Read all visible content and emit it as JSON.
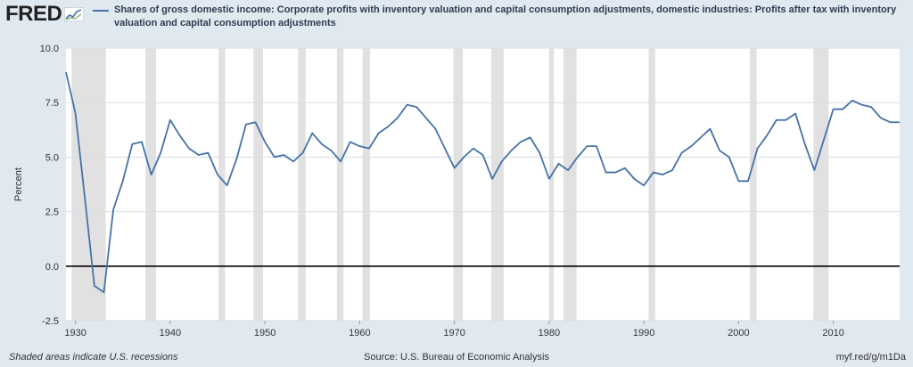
{
  "header": {
    "logo_text": "FRED",
    "legend_label": "Shares of gross domestic income: Corporate profits with inventory valuation and capital consumption adjustments, domestic industries: Profits after tax with inventory valuation and capital consumption adjustments"
  },
  "footer": {
    "recession_note": "Shaded areas indicate U.S. recessions",
    "source": "Source: U.S. Bureau of Economic Analysis",
    "short_url": "myf.red/g/m1Da"
  },
  "colors": {
    "line": "#4572a7",
    "recession": "#e1e1e1",
    "background": "#e1e9f0",
    "plot": "#ffffff",
    "zero_line": "#000000"
  },
  "chart_data": {
    "type": "line",
    "title": "",
    "xlabel": "",
    "ylabel": "Percent",
    "xlim": [
      1929,
      2017
    ],
    "ylim": [
      -2.5,
      10.0
    ],
    "y_ticks": [
      "10.0",
      "7.5",
      "5.0",
      "2.5",
      "0.0",
      "-2.5"
    ],
    "x_ticks": [
      "1930",
      "1940",
      "1950",
      "1960",
      "1970",
      "1980",
      "1990",
      "2000",
      "2010"
    ],
    "grid": true,
    "legend_position": "top",
    "series": [
      {
        "name": "Shares of gross domestic income: Corporate profits with inventory valuation and capital consumption adjustments, domestic industries: Profits after tax with inventory valuation and capital consumption adjustments",
        "x": [
          1929,
          1930,
          1931,
          1932,
          1933,
          1934,
          1935,
          1936,
          1937,
          1938,
          1939,
          1940,
          1941,
          1942,
          1943,
          1944,
          1945,
          1946,
          1947,
          1948,
          1949,
          1950,
          1951,
          1952,
          1953,
          1954,
          1955,
          1956,
          1957,
          1958,
          1959,
          1960,
          1961,
          1962,
          1963,
          1964,
          1965,
          1966,
          1967,
          1968,
          1969,
          1970,
          1971,
          1972,
          1973,
          1974,
          1975,
          1976,
          1977,
          1978,
          1979,
          1980,
          1981,
          1982,
          1983,
          1984,
          1985,
          1986,
          1987,
          1988,
          1989,
          1990,
          1991,
          1992,
          1993,
          1994,
          1995,
          1996,
          1997,
          1998,
          1999,
          2000,
          2001,
          2002,
          2003,
          2004,
          2005,
          2006,
          2007,
          2008,
          2009,
          2010,
          2011,
          2012,
          2013,
          2014,
          2015,
          2016,
          2017
        ],
        "y": [
          8.9,
          7.0,
          3.1,
          -0.9,
          -1.2,
          2.6,
          3.9,
          5.6,
          5.7,
          4.2,
          5.2,
          6.7,
          6.0,
          5.4,
          5.1,
          5.2,
          4.2,
          3.7,
          4.9,
          6.5,
          6.6,
          5.7,
          5.0,
          5.1,
          4.8,
          5.2,
          6.1,
          5.6,
          5.3,
          4.8,
          5.7,
          5.5,
          5.4,
          6.1,
          6.4,
          6.8,
          7.4,
          7.3,
          6.8,
          6.3,
          5.4,
          4.5,
          5.0,
          5.4,
          5.1,
          4.0,
          4.8,
          5.3,
          5.7,
          5.9,
          5.2,
          4.0,
          4.7,
          4.4,
          5.0,
          5.5,
          5.5,
          4.3,
          4.3,
          4.5,
          4.0,
          3.7,
          4.3,
          4.2,
          4.4,
          5.2,
          5.5,
          5.9,
          6.3,
          5.3,
          5.0,
          3.9,
          3.9,
          5.4,
          6.0,
          6.7,
          6.7,
          7.0,
          5.6,
          4.4,
          5.8,
          7.2,
          7.2,
          7.6,
          7.4,
          7.3,
          6.8,
          6.6,
          6.6
        ]
      }
    ],
    "recessions": [
      [
        1929.6,
        1933.2
      ],
      [
        1937.4,
        1938.5
      ],
      [
        1945.1,
        1945.8
      ],
      [
        1948.8,
        1949.8
      ],
      [
        1953.5,
        1954.3
      ],
      [
        1957.6,
        1958.3
      ],
      [
        1960.3,
        1961.1
      ],
      [
        1969.9,
        1970.9
      ],
      [
        1973.9,
        1975.2
      ],
      [
        1980.0,
        1980.5
      ],
      [
        1981.5,
        1982.9
      ],
      [
        1990.5,
        1991.2
      ],
      [
        2001.2,
        2001.9
      ],
      [
        2007.9,
        2009.5
      ]
    ]
  }
}
